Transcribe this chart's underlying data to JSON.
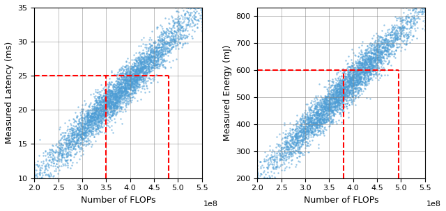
{
  "left_plot": {
    "xlabel": "Number of FLOPs",
    "ylabel": "Measured Latency (ms)",
    "xlim": [
      200000000,
      550000000
    ],
    "ylim": [
      10,
      35
    ],
    "xticks": [
      200000000,
      250000000,
      300000000,
      350000000,
      400000000,
      450000000,
      500000000,
      550000000
    ],
    "xtick_labels": [
      "2.0",
      "2.5",
      "3.0",
      "3.5",
      "4.0",
      "4.5",
      "5.0",
      "5.5"
    ],
    "yticks": [
      10,
      15,
      20,
      25,
      30,
      35
    ],
    "dot_color": "#4d9dd5",
    "hline_y": 25,
    "vline_x1": 350000000,
    "vline_x2": 480000000,
    "red_color": "red",
    "n_points": 4000,
    "seed": 42
  },
  "right_plot": {
    "xlabel": "Number of FLOPs",
    "ylabel": "Measured Energy (mJ)",
    "xlim": [
      200000000,
      550000000
    ],
    "ylim": [
      200,
      830
    ],
    "xticks": [
      200000000,
      250000000,
      300000000,
      350000000,
      400000000,
      450000000,
      500000000,
      550000000
    ],
    "xtick_labels": [
      "2.0",
      "2.5",
      "3.0",
      "3.5",
      "4.0",
      "4.5",
      "5.0",
      "5.5"
    ],
    "yticks": [
      200,
      300,
      400,
      500,
      600,
      700,
      800
    ],
    "dot_color": "#4d9dd5",
    "hline_y": 600,
    "vline_x1": 380000000,
    "vline_x2": 495000000,
    "red_color": "red",
    "n_points": 4000,
    "seed": 43
  },
  "fig_width": 6.4,
  "fig_height": 3.04,
  "dpi": 100,
  "marker_size": 3,
  "marker_alpha": 0.6,
  "linewidth_dashed": 1.5
}
